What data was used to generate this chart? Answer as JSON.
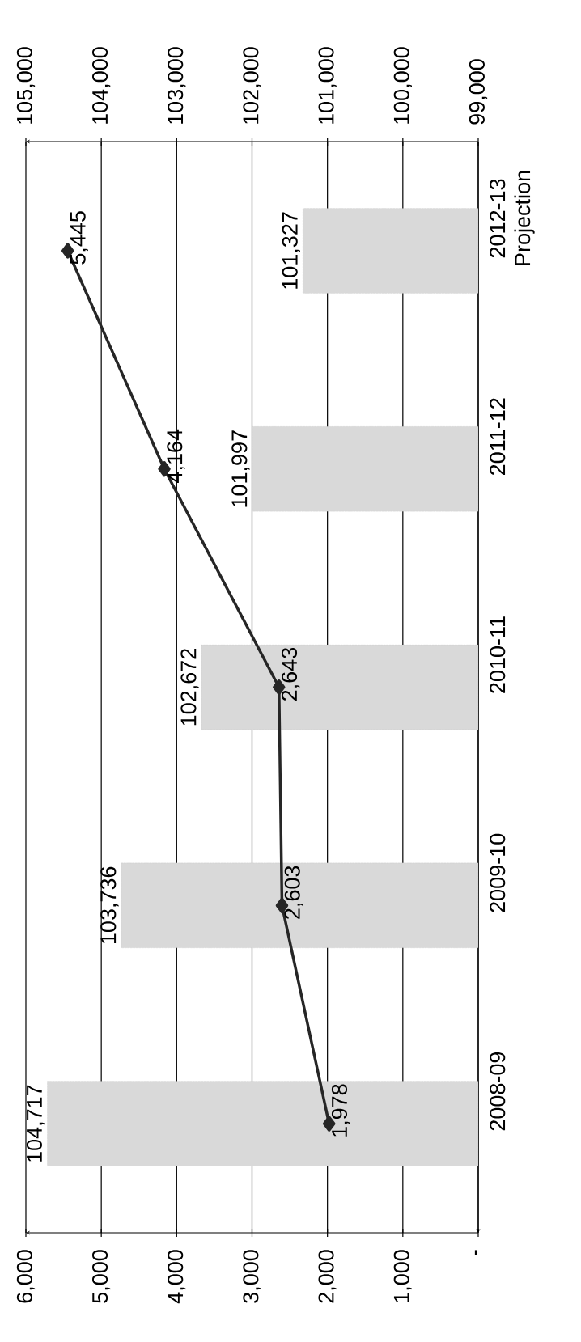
{
  "chart_data": {
    "type": "bar",
    "orientation": "horizontal",
    "categories": [
      "2012-13 Projection",
      "2011-12",
      "2010-11",
      "2009-10",
      "2008-09"
    ],
    "series": [
      {
        "axis": "x2",
        "color": "#d9d9d9",
        "values": [
          101327,
          101997,
          102672,
          103736,
          104717
        ],
        "value_labels": [
          "101,327",
          "101,997",
          "102,672",
          "103,736",
          "104,717"
        ]
      },
      {
        "type": "line",
        "color": "#262626",
        "values": [
          5445,
          4164,
          2643,
          2603,
          1978
        ],
        "value_labels": [
          "5,445",
          "4,164",
          "2,643",
          "2,603",
          "1,978"
        ]
      }
    ],
    "marker": "diamond",
    "grid": "x",
    "xlim": [
      6000,
      0
    ],
    "xticks": [
      {
        "value": 0,
        "label": "-"
      },
      {
        "value": 1000,
        "label": "1,000"
      },
      {
        "value": 2000,
        "label": "2,000"
      },
      {
        "value": 3000,
        "label": "3,000"
      },
      {
        "value": 4000,
        "label": "4,000"
      },
      {
        "value": 5000,
        "label": "5,000"
      },
      {
        "value": 6000,
        "label": "6,000"
      }
    ],
    "x2lim": [
      105000,
      99000
    ],
    "x2ticks": [
      {
        "value": 99000,
        "label": "99,000"
      },
      {
        "value": 100000,
        "label": "100,000"
      },
      {
        "value": 101000,
        "label": "101,000"
      },
      {
        "value": 102000,
        "label": "102,000"
      },
      {
        "value": 103000,
        "label": "103,000"
      },
      {
        "value": 104000,
        "label": "104,000"
      },
      {
        "value": 105000,
        "label": "105,000"
      }
    ]
  }
}
